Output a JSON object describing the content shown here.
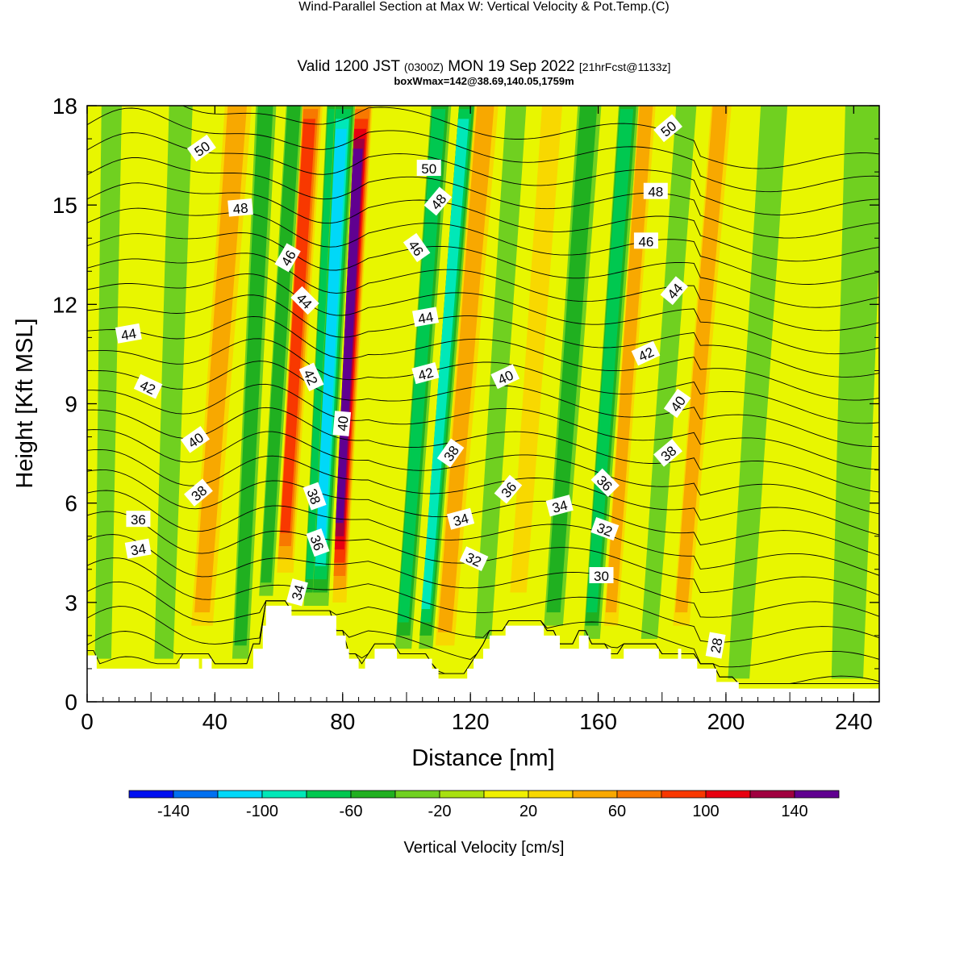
{
  "header": {
    "title": "Wind-Parallel Section at Max W: Vertical Velocity & Pot.Temp.",
    "copyright": "(C)",
    "valid_prefix": "Valid 1200 JST",
    "valid_utc": "(0300Z)",
    "valid_date": "MON 19 Sep 2022",
    "forecast": "[21hrFcst@1133z]",
    "box_info": "boxWmax=142@38.69,140.05,1759m"
  },
  "chart_data": {
    "type": "heatmap",
    "xlabel": "Distance [nm]",
    "ylabel": "Height [Kft MSL]",
    "xlim": [
      0,
      248
    ],
    "ylim": [
      0,
      18
    ],
    "x_ticks": [
      "0",
      "40",
      "80",
      "120",
      "160",
      "200",
      "240"
    ],
    "y_ticks": [
      "0",
      "3",
      "6",
      "9",
      "12",
      "15",
      "18"
    ],
    "colorbar": {
      "label": "Vertical Velocity [cm/s]",
      "tick_labels": [
        "-140",
        "-100",
        "-60",
        "-20",
        "20",
        "60",
        "100",
        "140"
      ],
      "levels": [
        -160,
        -140,
        -120,
        -100,
        -80,
        -60,
        -40,
        -20,
        0,
        20,
        40,
        60,
        80,
        100,
        120,
        140,
        160
      ],
      "colors": [
        "#0010f0",
        "#0070f0",
        "#00d8f8",
        "#00e8b8",
        "#00c850",
        "#20b020",
        "#70d020",
        "#a8e010",
        "#f0f000",
        "#f8d800",
        "#f8a800",
        "#f87800",
        "#f83800",
        "#e80010",
        "#a00040",
        "#600090"
      ]
    },
    "background_color": "#e8f600",
    "updraft_bands": [
      {
        "x": 36,
        "w": 6,
        "tilt": 0.45,
        "value": 40
      },
      {
        "x": 62,
        "w": 4,
        "tilt": 0.38,
        "value": 80
      },
      {
        "x": 79,
        "w": 3,
        "tilt": 0.32,
        "value": 140
      },
      {
        "x": 112,
        "w": 5,
        "tilt": 0.5,
        "value": 40
      },
      {
        "x": 135,
        "w": 4,
        "tilt": 0.45,
        "value": 30
      },
      {
        "x": 164,
        "w": 3,
        "tilt": 0.45,
        "value": 40
      },
      {
        "x": 186,
        "w": 4,
        "tilt": 0.5,
        "value": 50
      }
    ],
    "downdraft_bands": [
      {
        "x": 5,
        "w": 4,
        "tilt": 0.1,
        "value": -20
      },
      {
        "x": 24,
        "w": 5,
        "tilt": 0.2,
        "value": -30
      },
      {
        "x": 48,
        "w": 4,
        "tilt": 0.3,
        "value": -40
      },
      {
        "x": 56,
        "w": 3,
        "tilt": 0.38,
        "value": -50
      },
      {
        "x": 70,
        "w": 3,
        "tilt": 0.32,
        "value": -60
      },
      {
        "x": 73,
        "w": 4,
        "tilt": 0.32,
        "value": -110
      },
      {
        "x": 99,
        "w": 4,
        "tilt": 0.45,
        "value": -60
      },
      {
        "x": 106,
        "w": 3,
        "tilt": 0.5,
        "value": -80
      },
      {
        "x": 124,
        "w": 4,
        "tilt": 0.4,
        "value": -30
      },
      {
        "x": 146,
        "w": 5,
        "tilt": 0.45,
        "value": -40
      },
      {
        "x": 158,
        "w": 4,
        "tilt": 0.45,
        "value": -60
      },
      {
        "x": 176,
        "w": 4,
        "tilt": 0.45,
        "value": -30
      },
      {
        "x": 204,
        "w": 6,
        "tilt": 0.4,
        "value": -20
      },
      {
        "x": 238,
        "w": 10,
        "tilt": 0.2,
        "value": -20
      }
    ],
    "terrain": {
      "x": [
        0,
        3,
        3,
        29,
        29,
        35,
        35,
        36,
        36,
        39,
        39,
        52,
        52,
        55,
        55,
        56,
        56,
        64,
        64,
        65,
        65,
        78,
        78,
        81,
        81,
        82,
        82,
        85,
        85,
        87,
        87,
        90,
        90,
        92,
        92,
        97,
        97,
        108,
        108,
        110,
        110,
        116,
        116,
        119,
        119,
        121,
        121,
        124,
        124,
        126,
        126,
        131,
        131,
        136,
        136,
        143,
        143,
        148,
        148,
        154,
        154,
        155,
        155,
        157,
        157,
        164,
        164,
        168,
        168,
        171,
        171,
        172,
        172,
        179,
        179,
        185,
        185,
        186,
        186,
        190,
        190,
        191,
        191,
        197,
        197,
        204,
        204,
        206,
        206,
        210,
        210,
        248
      ],
      "y": [
        1.4,
        1.4,
        1.0,
        1.0,
        1.3,
        1.3,
        1.0,
        1.0,
        1.3,
        1.3,
        1.0,
        1.0,
        1.6,
        1.6,
        2.3,
        2.3,
        2.9,
        2.9,
        2.6,
        2.6,
        2.6,
        2.6,
        2.0,
        2.0,
        1.6,
        1.6,
        1.3,
        1.3,
        1.0,
        1.0,
        1.3,
        1.3,
        1.6,
        1.6,
        1.6,
        1.6,
        1.3,
        1.3,
        1.0,
        1.0,
        0.7,
        0.7,
        0.7,
        0.7,
        1.0,
        1.0,
        1.3,
        1.3,
        1.6,
        1.6,
        2.0,
        2.0,
        2.3,
        2.3,
        2.3,
        2.3,
        2.0,
        2.0,
        1.6,
        1.6,
        2.0,
        2.0,
        2.0,
        2.0,
        1.6,
        1.6,
        1.3,
        1.3,
        1.6,
        1.6,
        1.6,
        1.6,
        1.6,
        1.6,
        1.3,
        1.3,
        1.6,
        1.6,
        1.3,
        1.3,
        1.3,
        1.3,
        1.0,
        1.0,
        0.6,
        0.6,
        0.4,
        0.4,
        0.4,
        0.4,
        0.4,
        0.4
      ]
    },
    "theta_contours": {
      "levels": [
        28,
        30,
        32,
        34,
        36,
        38,
        40,
        42,
        44,
        46,
        48,
        50
      ],
      "labels": [
        {
          "text": "50",
          "x": 36,
          "y": 16.7,
          "rot": -35
        },
        {
          "text": "48",
          "x": 48,
          "y": 14.9,
          "rot": -5
        },
        {
          "text": "46",
          "x": 63,
          "y": 13.4,
          "rot": -60
        },
        {
          "text": "44",
          "x": 68,
          "y": 12.1,
          "rot": 45
        },
        {
          "text": "42",
          "x": 70,
          "y": 9.8,
          "rot": 65
        },
        {
          "text": "40",
          "x": 80,
          "y": 8.4,
          "rot": -85
        },
        {
          "text": "38",
          "x": 71,
          "y": 6.2,
          "rot": 70
        },
        {
          "text": "36",
          "x": 72,
          "y": 4.8,
          "rot": 70
        },
        {
          "text": "34",
          "x": 66,
          "y": 3.3,
          "rot": -75
        },
        {
          "text": "44",
          "x": 13,
          "y": 11.1,
          "rot": -10
        },
        {
          "text": "42",
          "x": 19,
          "y": 9.5,
          "rot": 25
        },
        {
          "text": "40",
          "x": 34,
          "y": 7.9,
          "rot": -35
        },
        {
          "text": "38",
          "x": 35,
          "y": 6.3,
          "rot": -40
        },
        {
          "text": "36",
          "x": 16,
          "y": 5.5,
          "rot": 0
        },
        {
          "text": "34",
          "x": 16,
          "y": 4.6,
          "rot": -10
        },
        {
          "text": "50",
          "x": 107,
          "y": 16.1,
          "rot": 0
        },
        {
          "text": "48",
          "x": 110,
          "y": 15.1,
          "rot": -50
        },
        {
          "text": "46",
          "x": 103,
          "y": 13.7,
          "rot": 55
        },
        {
          "text": "44",
          "x": 106,
          "y": 11.6,
          "rot": -10
        },
        {
          "text": "42",
          "x": 106,
          "y": 9.9,
          "rot": -15
        },
        {
          "text": "40",
          "x": 131,
          "y": 9.8,
          "rot": -25
        },
        {
          "text": "38",
          "x": 114,
          "y": 7.5,
          "rot": -55
        },
        {
          "text": "36",
          "x": 132,
          "y": 6.4,
          "rot": -50
        },
        {
          "text": "34",
          "x": 117,
          "y": 5.5,
          "rot": -15
        },
        {
          "text": "32",
          "x": 121,
          "y": 4.3,
          "rot": 25
        },
        {
          "text": "50",
          "x": 182,
          "y": 17.3,
          "rot": -40
        },
        {
          "text": "48",
          "x": 178,
          "y": 15.4,
          "rot": 0
        },
        {
          "text": "46",
          "x": 175,
          "y": 13.9,
          "rot": 0
        },
        {
          "text": "44",
          "x": 184,
          "y": 12.4,
          "rot": -50
        },
        {
          "text": "42",
          "x": 175,
          "y": 10.5,
          "rot": -25
        },
        {
          "text": "40",
          "x": 185,
          "y": 9.0,
          "rot": -55
        },
        {
          "text": "38",
          "x": 182,
          "y": 7.5,
          "rot": -40
        },
        {
          "text": "36",
          "x": 162,
          "y": 6.6,
          "rot": 45
        },
        {
          "text": "34",
          "x": 148,
          "y": 5.9,
          "rot": -15
        },
        {
          "text": "32",
          "x": 162,
          "y": 5.2,
          "rot": 20
        },
        {
          "text": "30",
          "x": 161,
          "y": 3.8,
          "rot": 0
        },
        {
          "text": "28",
          "x": 197,
          "y": 1.7,
          "rot": -80
        }
      ]
    }
  }
}
